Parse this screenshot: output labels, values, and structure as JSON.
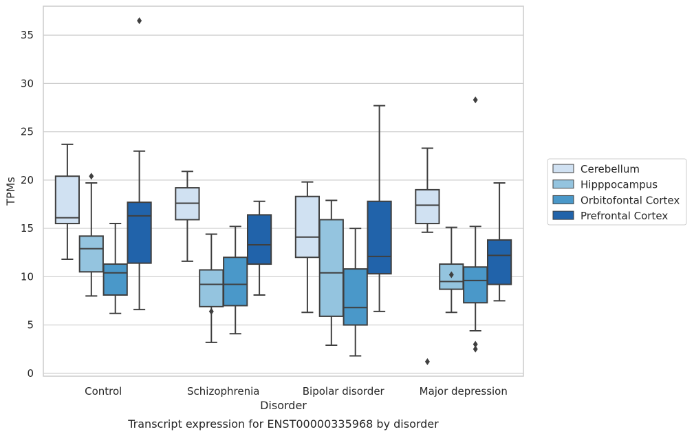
{
  "caption": "Transcript expression for ENST00000335968 by disorder",
  "chart_data": {
    "type": "box",
    "xlabel": "Disorder",
    "ylabel": "TPMs",
    "ylim": [
      -0.3,
      38
    ],
    "yticks": [
      0,
      5,
      10,
      15,
      20,
      25,
      30,
      35
    ],
    "grid": "horizontal",
    "legend_position": "right",
    "categories": [
      "Control",
      "Schizophrenia",
      "Bipolar disorder",
      "Major depression"
    ],
    "series": [
      {
        "name": "Cerebellum",
        "color": "#d0e1f2",
        "boxes": [
          {
            "whislo": 11.8,
            "q1": 15.5,
            "med": 16.1,
            "q3": 20.4,
            "whishi": 23.7,
            "fliers": []
          },
          {
            "whislo": 11.6,
            "q1": 15.9,
            "med": 17.6,
            "q3": 19.2,
            "whishi": 20.9,
            "fliers": []
          },
          {
            "whislo": 6.3,
            "q1": 12.0,
            "med": 14.1,
            "q3": 18.3,
            "whishi": 19.8,
            "fliers": []
          },
          {
            "whislo": 14.6,
            "q1": 15.5,
            "med": 17.4,
            "q3": 19.0,
            "whishi": 23.3,
            "fliers": [
              1.2
            ]
          }
        ]
      },
      {
        "name": "Hipppocampus",
        "color": "#94c4df",
        "boxes": [
          {
            "whislo": 8.0,
            "q1": 10.5,
            "med": 12.9,
            "q3": 14.2,
            "whishi": 19.7,
            "fliers": [
              20.4
            ]
          },
          {
            "whislo": 3.2,
            "q1": 6.9,
            "med": 9.2,
            "q3": 10.7,
            "whishi": 14.4,
            "fliers": [
              6.4
            ]
          },
          {
            "whislo": 2.9,
            "q1": 5.9,
            "med": 10.4,
            "q3": 15.9,
            "whishi": 17.9,
            "fliers": []
          },
          {
            "whislo": 6.3,
            "q1": 8.7,
            "med": 9.5,
            "q3": 11.3,
            "whishi": 15.1,
            "fliers": [
              10.2
            ]
          }
        ]
      },
      {
        "name": "Orbitofontal Cortex",
        "color": "#4a98c9",
        "boxes": [
          {
            "whislo": 6.2,
            "q1": 8.1,
            "med": 10.4,
            "q3": 11.3,
            "whishi": 15.5,
            "fliers": []
          },
          {
            "whislo": 4.1,
            "q1": 7.0,
            "med": 9.2,
            "q3": 12.0,
            "whishi": 15.2,
            "fliers": []
          },
          {
            "whislo": 1.8,
            "q1": 5.0,
            "med": 6.8,
            "q3": 10.8,
            "whishi": 15.0,
            "fliers": []
          },
          {
            "whislo": 4.4,
            "q1": 7.3,
            "med": 9.6,
            "q3": 11.0,
            "whishi": 15.2,
            "fliers": [
              3.0,
              2.5,
              28.3
            ]
          }
        ]
      },
      {
        "name": "Prefrontal Cortex",
        "color": "#2163aa",
        "boxes": [
          {
            "whislo": 6.6,
            "q1": 11.4,
            "med": 16.3,
            "q3": 17.7,
            "whishi": 23.0,
            "fliers": [
              36.5
            ]
          },
          {
            "whislo": 8.1,
            "q1": 11.3,
            "med": 13.3,
            "q3": 16.4,
            "whishi": 17.8,
            "fliers": []
          },
          {
            "whislo": 6.4,
            "q1": 10.3,
            "med": 12.1,
            "q3": 17.8,
            "whishi": 27.7,
            "fliers": []
          },
          {
            "whislo": 7.5,
            "q1": 9.2,
            "med": 12.2,
            "q3": 13.8,
            "whishi": 19.7,
            "fliers": []
          }
        ]
      }
    ]
  }
}
